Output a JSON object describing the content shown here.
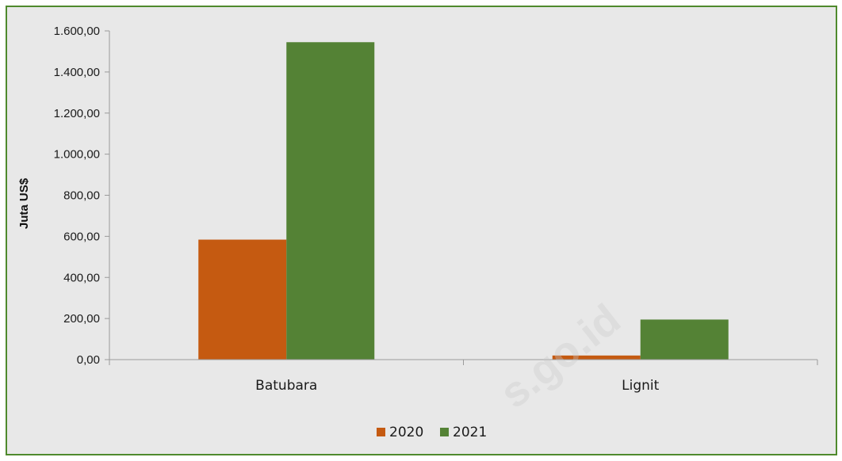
{
  "chart_data": {
    "type": "bar",
    "categories": [
      "Batubara",
      "Lignit"
    ],
    "series": [
      {
        "name": "2020",
        "color": "#c55a11",
        "values": [
          584,
          20
        ]
      },
      {
        "name": "2021",
        "color": "#548235",
        "values": [
          1545,
          195
        ]
      }
    ],
    "ylabel": "Juta US$",
    "xlabel": "",
    "ylim": [
      0,
      1600
    ],
    "yticks": [
      "0,00",
      "200,00",
      "400,00",
      "600,00",
      "800,00",
      "1.000,00",
      "1.200,00",
      "1.400,00",
      "1.600,00"
    ],
    "grid": false,
    "legend_position": "bottom-center"
  },
  "watermark_text": "s.go.id"
}
